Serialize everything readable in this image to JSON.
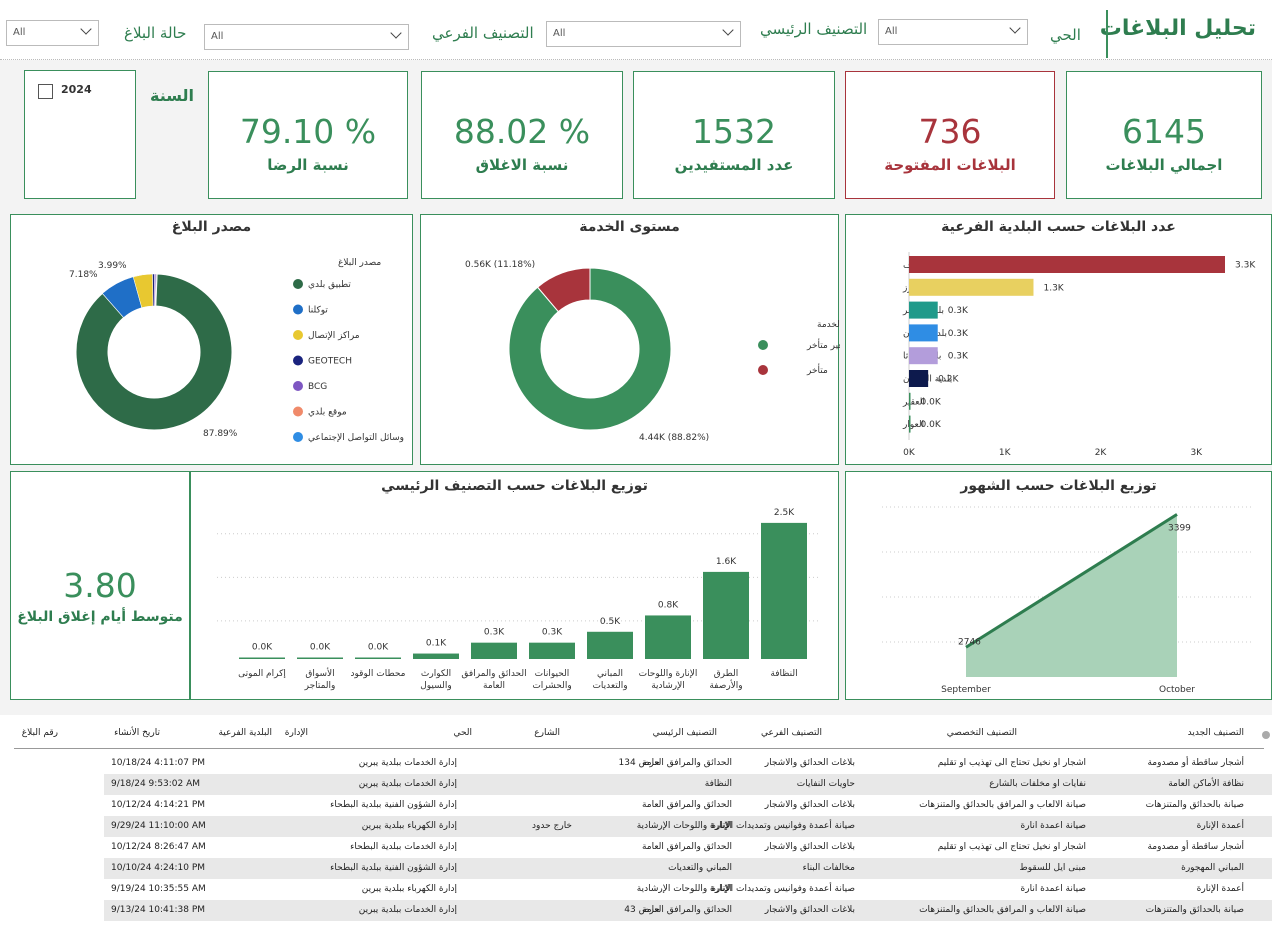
{
  "header": {
    "title": "تحليل البلاغات",
    "filters": [
      {
        "label": "الحي",
        "value": "All"
      },
      {
        "label": "التصنيف الرئيسي",
        "value": "All"
      },
      {
        "label": "التصنيف الفرعي",
        "value": "All"
      },
      {
        "label": "حالة البلاغ",
        "value": "All"
      }
    ]
  },
  "kpis": {
    "total": {
      "value": "6145",
      "label": "اجمالي البلاغات"
    },
    "open": {
      "value": "736",
      "label": "البلاغات المفتوحة"
    },
    "beneficiaries": {
      "value": "1532",
      "label": "عدد المستفيدين"
    },
    "closing_rate": {
      "value": "88.02 %",
      "label": "نسبة الاغلاق"
    },
    "satisfaction": {
      "value": "79.10 %",
      "label": "نسبة الرضا"
    },
    "avg_close_days": {
      "value": "3.80",
      "label": "متوسط أيام إغلاق البلاغ"
    }
  },
  "year": {
    "label": "السنة",
    "option": "2024",
    "checked": false
  },
  "colors": {
    "accent": "#3a8f5c",
    "red": "#a8343c",
    "yellow": "#e8d060",
    "teal": "#1f9a8a",
    "blue": "#2f8de4",
    "lavender": "#b39ddb",
    "navy": "#0d1a4d"
  },
  "chart_data": [
    {
      "id": "municipality",
      "type": "bar",
      "orientation": "horizontal",
      "title": "عدد البلاغات حسب البلدية الفرعية",
      "categories": [
        "بلدية الهفوف",
        "بلدية المبرز",
        "بلدية الجفر",
        "بلدية العيون",
        "بلدية جواثا",
        "بلدية العمران",
        "العقير",
        "العوار"
      ],
      "values": [
        3300,
        1300,
        300,
        300,
        300,
        200,
        0,
        0
      ],
      "value_labels": [
        "3.3K",
        "1.3K",
        "0.3K",
        "0.3K",
        "0.3K",
        "0.2K",
        "0.0K",
        "0.0K"
      ],
      "colors": [
        "#a8343c",
        "#e8d060",
        "#1f9a8a",
        "#2f8de4",
        "#b39ddb",
        "#0d1a4d",
        "#3a8f5c",
        "#3a8f5c"
      ],
      "xticks": [
        "0K",
        "1K",
        "2K",
        "3K"
      ],
      "xlim": [
        0,
        3300
      ]
    },
    {
      "id": "service",
      "type": "pie",
      "donut": true,
      "title": "مستوى الخدمة",
      "legend_title": "مستوى الخدمة",
      "slices": [
        {
          "name": "غير متأخر",
          "value": 4440,
          "label": "4.44K (88.82%)",
          "color": "#3a8f5c"
        },
        {
          "name": "متأخر",
          "value": 560,
          "label": "0.56K (11.18%)",
          "color": "#a8343c"
        }
      ]
    },
    {
      "id": "source",
      "type": "pie",
      "donut": true,
      "title": "مصدر البلاغ",
      "legend_title": "مصدر البلاغ",
      "slices": [
        {
          "name": "تطبيق بلدي",
          "value": 87.89,
          "label": "87.89%",
          "color": "#2e6b48"
        },
        {
          "name": "توكلنا",
          "value": 7.18,
          "label": "7.18%",
          "color": "#1f6fc7"
        },
        {
          "name": "مراكز الإتصال",
          "value": 3.99,
          "label": "3.99%",
          "color": "#e8c830"
        },
        {
          "name": "GEOTECH",
          "value": 0.4,
          "label": "",
          "color": "#1a237e"
        },
        {
          "name": "BCG",
          "value": 0.3,
          "label": "",
          "color": "#7e57c2"
        },
        {
          "name": "موقع بلدي",
          "value": 0.14,
          "label": "",
          "color": "#f08a6a"
        },
        {
          "name": "وسائل التواصل الإجتماعي",
          "value": 0.1,
          "label": "",
          "color": "#2f8de4"
        }
      ]
    },
    {
      "id": "category",
      "type": "bar",
      "title": "توزيع البلاغات حسب التصنيف الرئيسي",
      "categories": [
        "النظافة",
        "الطرق والأرصفة",
        "الإنارة واللوحات الإرشادية",
        "المباني والتعديات",
        "الحيوانات والحشرات",
        "الحدائق والمرافق العامة",
        "الكوارث والسيول",
        "محطات الوقود",
        "الأسواق والمتاجر",
        "إكرام الموتى"
      ],
      "values": [
        2500,
        1600,
        800,
        500,
        300,
        300,
        100,
        0,
        0,
        0
      ],
      "value_labels": [
        "2.5K",
        "1.6K",
        "0.8K",
        "0.5K",
        "0.3K",
        "0.3K",
        "0.1K",
        "0.0K",
        "0.0K",
        "0.0K"
      ],
      "ylim": [
        0,
        2700
      ]
    },
    {
      "id": "months",
      "type": "area",
      "title": "توزيع البلاغات حسب الشهور",
      "x": [
        "September",
        "October"
      ],
      "values": [
        2746,
        3399
      ],
      "value_labels": [
        "2746",
        "3399"
      ],
      "ylim": [
        2600,
        3450
      ]
    }
  ],
  "table": {
    "headers": [
      "التصنيف الجديد",
      "التصنيف التخصصي",
      "التصنيف الفرعي",
      "التصنيف الرئيسي",
      "الشارع",
      "الحي",
      "الإدارة",
      "البلدية الفرعية",
      "تاريخ الأنشاء",
      "رقم البلاغ"
    ],
    "rows": [
      {
        "new": "أشجار ساقطة أو مصدومة",
        "spec": "اشجار او نخيل تحتاج الى تهذيب او تقليم",
        "sub": "بلاغات الحدائق والاشجار",
        "main": "الحدائق والمرافق العامة",
        "street": "حرص 134",
        "district": "",
        "admin": "إدارة الخدمات ببلدية يبرين",
        "date": "10/18/24 4:11:07 PM"
      },
      {
        "new": "نظافة الأماكن العامة",
        "spec": "نفايات او مخلفات بالشارع",
        "sub": "حاويات النفايات",
        "main": "النظافة",
        "street": "",
        "district": "",
        "admin": "إدارة الخدمات ببلدية يبرين",
        "date": "9/18/24 9:53:02 AM"
      },
      {
        "new": "صيانة بالحدائق والمتنزهات",
        "spec": "صيانة الالعاب و المرافق بالحدائق والمتنزهات",
        "sub": "بلاغات الحدائق والاشجار",
        "main": "الحدائق والمرافق العامة",
        "street": "",
        "district": "",
        "admin": "إدارة الشؤون الفنية ببلدية البطحاء",
        "date": "10/12/24 4:14:21 PM"
      },
      {
        "new": "أعمدة الإنارة",
        "spec": "صيانة اعمدة انارة",
        "sub": "صيانة أعمدة وفوانيس وتمديدات الإنارة",
        "main": "الإنارة واللوحات الإرشادية",
        "street": "",
        "district": "خارج حدود",
        "admin": "إدارة الكهرباء ببلدية يبرين",
        "date": "9/29/24 11:10:00 AM"
      },
      {
        "new": "أشجار ساقطة أو مصدومة",
        "spec": "اشجار او نخيل تحتاج الى تهذيب او تقليم",
        "sub": "بلاغات الحدائق والاشجار",
        "main": "الحدائق والمرافق العامة",
        "street": "",
        "district": "",
        "admin": "إدارة الخدمات ببلدية البطحاء",
        "date": "10/12/24 8:26:47 AM"
      },
      {
        "new": "المباني المهجورة",
        "spec": "مبنى ايل للسقوط",
        "sub": "مخالفات البناء",
        "main": "المباني والتعديات",
        "street": "",
        "district": "",
        "admin": "إدارة الشؤون الفنية ببلدية البطحاء",
        "date": "10/10/24 4:24:10 PM"
      },
      {
        "new": "أعمدة الإنارة",
        "spec": "صيانة اعمدة انارة",
        "sub": "صيانة أعمدة وفوانيس وتمديدات الإنارة",
        "main": "الإنارة واللوحات الإرشادية",
        "street": "",
        "district": "",
        "admin": "إدارة الكهرباء ببلدية يبرين",
        "date": "9/19/24 10:35:55 AM"
      },
      {
        "new": "صيانة بالحدائق والمتنزهات",
        "spec": "صيانة الالعاب و المرافق بالحدائق والمتنزهات",
        "sub": "بلاغات الحدائق والاشجار",
        "main": "الحدائق والمرافق العامة",
        "street": "حرص 43",
        "district": "",
        "admin": "إدارة الخدمات ببلدية يبرين",
        "date": "9/13/24 10:41:38 PM"
      }
    ]
  }
}
